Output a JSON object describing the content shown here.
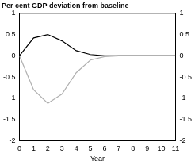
{
  "chart_data": {
    "type": "line",
    "title": "Per cent GDP deviation from baseline",
    "x_label": "Year",
    "x": [
      0,
      1,
      2,
      3,
      4,
      5,
      6,
      7,
      8,
      9,
      10,
      11
    ],
    "series": [
      {
        "color": "#000000",
        "values": [
          0,
          0.42,
          0.5,
          0.35,
          0.12,
          0.03,
          0,
          0,
          0,
          0,
          0,
          0
        ]
      },
      {
        "color": "#b0b0b0",
        "values": [
          0,
          -0.8,
          -1.12,
          -0.9,
          -0.4,
          -0.1,
          -0.02,
          0,
          0,
          0,
          0,
          0
        ]
      }
    ],
    "xlim": [
      0,
      11
    ],
    "xticks": [
      0,
      1,
      2,
      3,
      4,
      5,
      6,
      7,
      8,
      9,
      10,
      11
    ],
    "ylim": [
      -2,
      1
    ],
    "yticks": [
      -2,
      -1.5,
      -1,
      -0.5,
      0,
      0.5,
      1
    ],
    "y2lim": [
      -2,
      1
    ],
    "y2ticks": [
      -2,
      -1.5,
      -1,
      -0.5,
      0,
      0.5,
      1
    ],
    "grid": false
  }
}
